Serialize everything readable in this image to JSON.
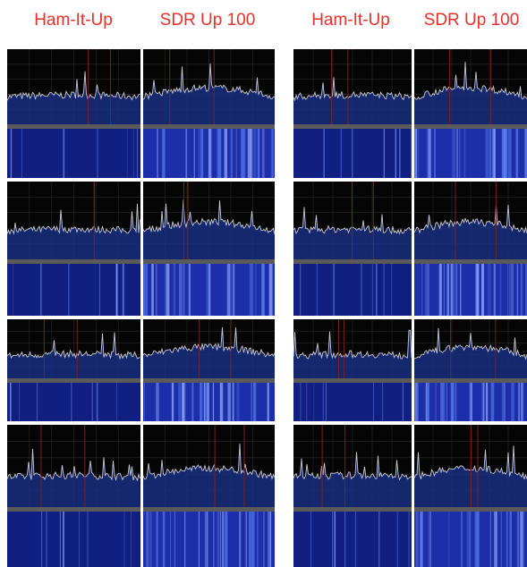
{
  "headers": {
    "left": [
      "Ham-It-Up",
      "SDR Up 100"
    ],
    "right": [
      "Ham-It-Up",
      "SDR Up 100"
    ]
  }
}
